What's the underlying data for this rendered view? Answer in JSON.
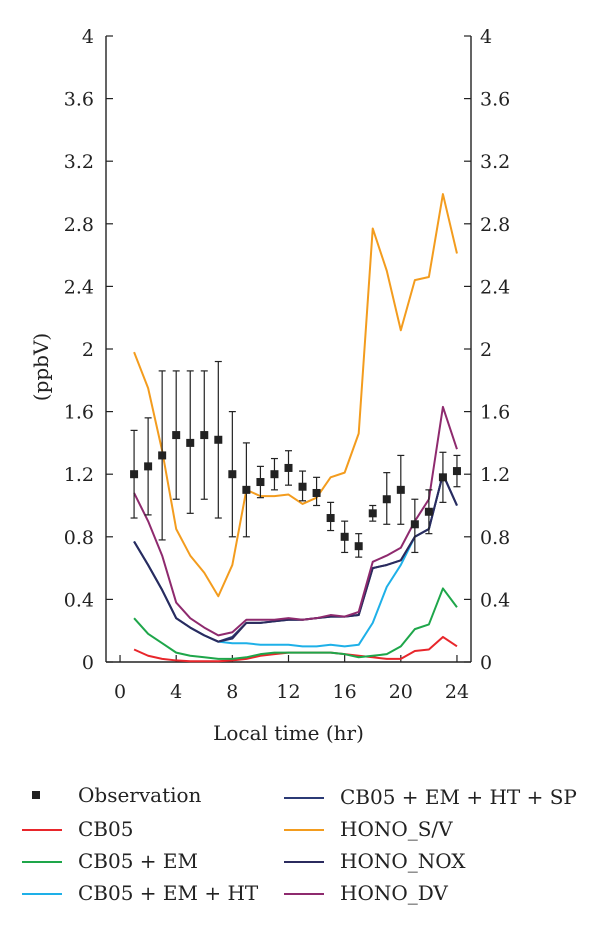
{
  "chart_data": {
    "type": "line",
    "xlabel": "Local time (hr)",
    "ylabel": "(ppbV)",
    "xlim": [
      -1,
      25
    ],
    "ylim": [
      0,
      4
    ],
    "xticks": [
      0,
      4,
      8,
      12,
      16,
      20,
      24
    ],
    "yticks": [
      0,
      0.4,
      0.8,
      1.2,
      1.6,
      2,
      2.4,
      2.8,
      3.2,
      3.6,
      4
    ],
    "right_axis": true,
    "grid": false,
    "legend_position": "bottom",
    "observation": {
      "name": "Observation",
      "color": "#222222",
      "x": [
        1,
        2,
        3,
        4,
        5,
        6,
        7,
        8,
        9,
        10,
        11,
        12,
        13,
        14,
        15,
        16,
        17,
        18,
        19,
        20,
        21,
        22,
        23,
        24
      ],
      "y": [
        1.2,
        1.25,
        1.32,
        1.45,
        1.4,
        1.45,
        1.42,
        1.2,
        1.1,
        1.15,
        1.2,
        1.24,
        1.12,
        1.08,
        0.92,
        0.8,
        0.74,
        0.95,
        1.04,
        1.1,
        0.88,
        0.96,
        1.18,
        1.22
      ],
      "err_low": [
        0.92,
        0.94,
        0.78,
        1.04,
        0.95,
        1.04,
        0.92,
        0.8,
        0.8,
        1.05,
        1.1,
        1.13,
        1.03,
        1.0,
        0.84,
        0.7,
        0.67,
        0.9,
        0.88,
        0.88,
        0.7,
        0.82,
        1.02,
        1.12
      ],
      "err_high": [
        1.48,
        1.56,
        1.86,
        1.86,
        1.86,
        1.86,
        1.92,
        1.6,
        1.4,
        1.25,
        1.3,
        1.35,
        1.22,
        1.18,
        1.02,
        0.9,
        0.82,
        1.0,
        1.21,
        1.32,
        1.04,
        1.1,
        1.34,
        1.32
      ]
    },
    "x": [
      1,
      2,
      3,
      4,
      5,
      6,
      7,
      8,
      9,
      10,
      11,
      12,
      13,
      14,
      15,
      16,
      17,
      18,
      19,
      20,
      21,
      22,
      23,
      24
    ],
    "series": [
      {
        "name": "CB05",
        "color": "#e8262b",
        "values": [
          0.08,
          0.04,
          0.02,
          0.01,
          0.005,
          0.005,
          0.005,
          0.01,
          0.02,
          0.04,
          0.05,
          0.06,
          0.06,
          0.06,
          0.06,
          0.05,
          0.04,
          0.03,
          0.02,
          0.02,
          0.07,
          0.08,
          0.16,
          0.1
        ]
      },
      {
        "name": "CB05 + EM",
        "color": "#1ea64a",
        "values": [
          0.28,
          0.18,
          0.12,
          0.06,
          0.04,
          0.03,
          0.02,
          0.02,
          0.03,
          0.05,
          0.06,
          0.06,
          0.06,
          0.06,
          0.06,
          0.05,
          0.03,
          0.04,
          0.05,
          0.1,
          0.21,
          0.24,
          0.47,
          0.35
        ]
      },
      {
        "name": "CB05 + EM + HT",
        "color": "#1eb0e8",
        "values": [
          0.77,
          0.62,
          0.46,
          0.28,
          0.22,
          0.17,
          0.13,
          0.12,
          0.12,
          0.11,
          0.11,
          0.11,
          0.1,
          0.1,
          0.11,
          0.1,
          0.11,
          0.25,
          0.48,
          0.62,
          0.8,
          0.85,
          1.2,
          1.0
        ]
      },
      {
        "name": "CB05 + EM + HT + SP",
        "color": "#2b3a75",
        "values": [
          0.77,
          0.62,
          0.46,
          0.28,
          0.22,
          0.17,
          0.13,
          0.16,
          0.25,
          0.25,
          0.26,
          0.27,
          0.27,
          0.28,
          0.29,
          0.29,
          0.3,
          0.6,
          0.62,
          0.65,
          0.8,
          0.85,
          1.2,
          1.0
        ]
      },
      {
        "name": "HONO_S/V",
        "color": "#f39c1e",
        "values": [
          1.98,
          1.75,
          1.35,
          0.85,
          0.68,
          0.57,
          0.42,
          0.62,
          1.1,
          1.06,
          1.06,
          1.07,
          1.01,
          1.05,
          1.18,
          1.21,
          1.46,
          2.77,
          2.5,
          2.12,
          2.44,
          2.46,
          2.99,
          2.61
        ]
      },
      {
        "name": "HONO_NOX",
        "color": "#2b2b5e",
        "values": [
          0.77,
          0.62,
          0.46,
          0.28,
          0.22,
          0.17,
          0.13,
          0.15,
          0.25,
          0.25,
          0.26,
          0.27,
          0.27,
          0.28,
          0.29,
          0.29,
          0.3,
          0.6,
          0.62,
          0.65,
          0.8,
          0.85,
          1.2,
          1.0
        ]
      },
      {
        "name": "HONO_DV",
        "color": "#8e2a6e",
        "values": [
          1.08,
          0.9,
          0.68,
          0.38,
          0.28,
          0.22,
          0.17,
          0.19,
          0.27,
          0.27,
          0.27,
          0.28,
          0.27,
          0.28,
          0.3,
          0.29,
          0.32,
          0.64,
          0.68,
          0.73,
          0.9,
          1.04,
          1.63,
          1.36
        ]
      }
    ],
    "legend": [
      {
        "label": "Observation",
        "kind": "marker",
        "color": "#222222"
      },
      {
        "label": "CB05",
        "kind": "line",
        "color": "#e8262b"
      },
      {
        "label": "CB05 + EM",
        "kind": "line",
        "color": "#1ea64a"
      },
      {
        "label": "CB05 + EM + HT",
        "kind": "line",
        "color": "#1eb0e8"
      },
      {
        "label": "CB05 + EM + HT + SP",
        "kind": "line",
        "color": "#2b3a75"
      },
      {
        "label": "HONO_S/V",
        "kind": "line",
        "color": "#f39c1e"
      },
      {
        "label": "HONO_NOX",
        "kind": "line",
        "color": "#2b2b5e"
      },
      {
        "label": "HONO_DV",
        "kind": "line",
        "color": "#8e2a6e"
      }
    ]
  }
}
